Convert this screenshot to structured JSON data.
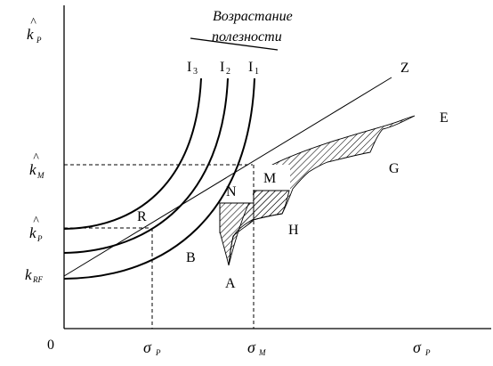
{
  "title_lines": [
    "Возрастание",
    "полезности"
  ],
  "origin": "0",
  "y_axis": {
    "top": {
      "base": "k",
      "hat": "^",
      "sub": "P"
    },
    "km": {
      "base": "k",
      "hat": "^",
      "sub": "M"
    },
    "kp": {
      "base": "k",
      "hat": "^",
      "sub": "P"
    },
    "krf": {
      "base": "k",
      "sub": "RF"
    }
  },
  "x_axis": {
    "sp": {
      "base": "σ",
      "sub": "P"
    },
    "sm": {
      "base": "σ",
      "sub": "M"
    },
    "end": {
      "base": "σ",
      "sub": "P"
    }
  },
  "curves": {
    "i3": {
      "base": "I",
      "num": "3"
    },
    "i2": {
      "base": "I",
      "num": "2"
    },
    "i1": {
      "base": "I",
      "num": "1"
    }
  },
  "points": {
    "Z": "Z",
    "E": "E",
    "G": "G",
    "M": "M",
    "N": "N",
    "H": "H",
    "R": "R",
    "B": "B",
    "A": "A"
  }
}
